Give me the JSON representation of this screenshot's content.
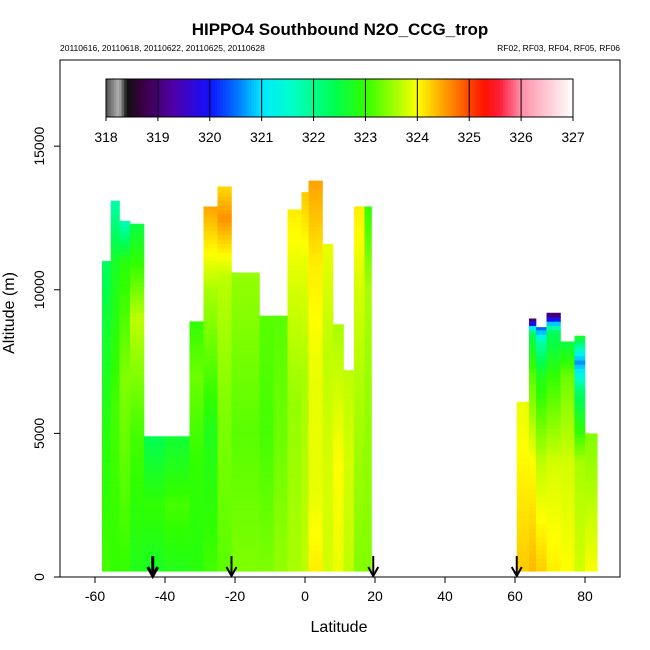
{
  "chart_data": {
    "type": "heatmap",
    "title": "HIPPO4 Southbound N2O_CCG_trop",
    "subtitle_left": "20110616, 20110618, 20110622, 20110625, 20110628",
    "subtitle_right": "RF02, RF03, RF04, RF05, RF06",
    "xlabel": "Latitude",
    "ylabel": "Altitude (m)",
    "xlim": [
      -70,
      90
    ],
    "ylim": [
      0,
      18000
    ],
    "x_ticks": [
      "-60",
      "-40",
      "-20",
      "0",
      "20",
      "40",
      "60",
      "80"
    ],
    "x_tick_values": [
      -60,
      -40,
      -20,
      0,
      20,
      40,
      60,
      80
    ],
    "y_ticks": [
      "0",
      "5000",
      "10000",
      "15000"
    ],
    "y_tick_values": [
      0,
      5000,
      10000,
      15000
    ],
    "colorbar": {
      "min": 318,
      "max": 327,
      "tick_labels": [
        "318",
        "319",
        "320",
        "321",
        "322",
        "323",
        "324",
        "325",
        "326",
        "327"
      ],
      "stops": [
        {
          "v": 318.0,
          "c": "#505050"
        },
        {
          "v": 318.25,
          "c": "#b4b4b4"
        },
        {
          "v": 318.4,
          "c": "#101010"
        },
        {
          "v": 318.7,
          "c": "#3a0040"
        },
        {
          "v": 319.3,
          "c": "#5000a8"
        },
        {
          "v": 320.0,
          "c": "#1010ff"
        },
        {
          "v": 320.5,
          "c": "#0070ff"
        },
        {
          "v": 321.0,
          "c": "#00e8ff"
        },
        {
          "v": 321.6,
          "c": "#00ffc8"
        },
        {
          "v": 322.4,
          "c": "#00ff50"
        },
        {
          "v": 323.0,
          "c": "#30ff00"
        },
        {
          "v": 323.6,
          "c": "#a8ff00"
        },
        {
          "v": 324.0,
          "c": "#ffff00"
        },
        {
          "v": 324.6,
          "c": "#ff9000"
        },
        {
          "v": 325.3,
          "c": "#ff1000"
        },
        {
          "v": 325.6,
          "c": "#ff2040"
        },
        {
          "v": 326.0,
          "c": "#ff90a8"
        },
        {
          "v": 327.0,
          "c": "#ffffff"
        }
      ]
    },
    "profiles": [
      {
        "lat_min": -58,
        "lat_max": -55.5,
        "alt_top": 11000,
        "levels": [
          {
            "alt": 0,
            "v": 323.1
          },
          {
            "alt": 5000,
            "v": 322.9
          },
          {
            "alt": 9000,
            "v": 322.6
          },
          {
            "alt": 11000,
            "v": 322.3
          }
        ]
      },
      {
        "lat_min": -55.5,
        "lat_max": -53,
        "alt_top": 13100,
        "levels": [
          {
            "alt": 0,
            "v": 323.0
          },
          {
            "alt": 6000,
            "v": 323.1
          },
          {
            "alt": 11000,
            "v": 322.7
          },
          {
            "alt": 13100,
            "v": 321.8
          }
        ]
      },
      {
        "lat_min": -53,
        "lat_max": -50,
        "alt_top": 12400,
        "levels": [
          {
            "alt": 0,
            "v": 323.0
          },
          {
            "alt": 7000,
            "v": 323.4
          },
          {
            "alt": 11000,
            "v": 322.9
          },
          {
            "alt": 12400,
            "v": 321.7
          }
        ]
      },
      {
        "lat_min": -50,
        "lat_max": -46,
        "alt_top": 12300,
        "levels": [
          {
            "alt": 0,
            "v": 322.8
          },
          {
            "alt": 5000,
            "v": 323.1
          },
          {
            "alt": 9000,
            "v": 323.7
          },
          {
            "alt": 12300,
            "v": 322.5
          }
        ]
      },
      {
        "lat_min": -46,
        "lat_max": -40,
        "alt_top": 4900,
        "levels": [
          {
            "alt": 0,
            "v": 322.7
          },
          {
            "alt": 2500,
            "v": 323.0
          },
          {
            "alt": 4900,
            "v": 322.4
          }
        ]
      },
      {
        "lat_min": -40,
        "lat_max": -33,
        "alt_top": 4900,
        "levels": [
          {
            "alt": 0,
            "v": 322.8
          },
          {
            "alt": 2500,
            "v": 323.1
          },
          {
            "alt": 4900,
            "v": 322.6
          }
        ]
      },
      {
        "lat_min": -33,
        "lat_max": -29,
        "alt_top": 8900,
        "levels": [
          {
            "alt": 0,
            "v": 322.9
          },
          {
            "alt": 4000,
            "v": 323.0
          },
          {
            "alt": 7000,
            "v": 323.3
          },
          {
            "alt": 8900,
            "v": 323.0
          }
        ]
      },
      {
        "lat_min": -29,
        "lat_max": -25,
        "alt_top": 12900,
        "levels": [
          {
            "alt": 0,
            "v": 323.1
          },
          {
            "alt": 5000,
            "v": 322.8
          },
          {
            "alt": 10000,
            "v": 323.6
          },
          {
            "alt": 12900,
            "v": 324.5
          }
        ]
      },
      {
        "lat_min": -25,
        "lat_max": -21,
        "alt_top": 13600,
        "levels": [
          {
            "alt": 0,
            "v": 323.2
          },
          {
            "alt": 6000,
            "v": 323.4
          },
          {
            "alt": 10500,
            "v": 323.7
          },
          {
            "alt": 12500,
            "v": 324.6
          },
          {
            "alt": 13600,
            "v": 324.2
          }
        ]
      },
      {
        "lat_min": -21,
        "lat_max": -13,
        "alt_top": 10600,
        "levels": [
          {
            "alt": 0,
            "v": 323.4
          },
          {
            "alt": 5000,
            "v": 323.2
          },
          {
            "alt": 10600,
            "v": 323.5
          }
        ]
      },
      {
        "lat_min": -13,
        "lat_max": -9,
        "alt_top": 9100,
        "levels": [
          {
            "alt": 0,
            "v": 323.4
          },
          {
            "alt": 5000,
            "v": 323.1
          },
          {
            "alt": 9100,
            "v": 323.2
          }
        ]
      },
      {
        "lat_min": -9,
        "lat_max": -5,
        "alt_top": 9100,
        "levels": [
          {
            "alt": 0,
            "v": 323.5
          },
          {
            "alt": 5000,
            "v": 323.3
          },
          {
            "alt": 9100,
            "v": 323.2
          }
        ]
      },
      {
        "lat_min": -5,
        "lat_max": -1,
        "alt_top": 12800,
        "levels": [
          {
            "alt": 0,
            "v": 323.6
          },
          {
            "alt": 6000,
            "v": 323.5
          },
          {
            "alt": 10000,
            "v": 323.8
          },
          {
            "alt": 12800,
            "v": 324.1
          }
        ]
      },
      {
        "lat_min": -1,
        "lat_max": 1,
        "alt_top": 13400,
        "levels": [
          {
            "alt": 0,
            "v": 323.7
          },
          {
            "alt": 7000,
            "v": 323.6
          },
          {
            "alt": 11000,
            "v": 323.9
          },
          {
            "alt": 13400,
            "v": 324.3
          }
        ]
      },
      {
        "lat_min": 1,
        "lat_max": 5,
        "alt_top": 13800,
        "levels": [
          {
            "alt": 0,
            "v": 324.1
          },
          {
            "alt": 3000,
            "v": 323.9
          },
          {
            "alt": 7000,
            "v": 323.9
          },
          {
            "alt": 11000,
            "v": 324.1
          },
          {
            "alt": 13800,
            "v": 324.5
          }
        ]
      },
      {
        "lat_min": 5,
        "lat_max": 8,
        "alt_top": 11600,
        "levels": [
          {
            "alt": 0,
            "v": 323.8
          },
          {
            "alt": 4000,
            "v": 323.8
          },
          {
            "alt": 8000,
            "v": 323.7
          },
          {
            "alt": 11600,
            "v": 323.9
          }
        ]
      },
      {
        "lat_min": 8,
        "lat_max": 11,
        "alt_top": 8800,
        "levels": [
          {
            "alt": 0,
            "v": 323.9
          },
          {
            "alt": 4000,
            "v": 324.0
          },
          {
            "alt": 8800,
            "v": 323.6
          }
        ]
      },
      {
        "lat_min": 11,
        "lat_max": 14,
        "alt_top": 7200,
        "levels": [
          {
            "alt": 0,
            "v": 323.7
          },
          {
            "alt": 4000,
            "v": 323.8
          },
          {
            "alt": 7200,
            "v": 323.7
          }
        ]
      },
      {
        "lat_min": 14,
        "lat_max": 17,
        "alt_top": 12900,
        "levels": [
          {
            "alt": 0,
            "v": 323.4
          },
          {
            "alt": 6000,
            "v": 323.6
          },
          {
            "alt": 10000,
            "v": 323.8
          },
          {
            "alt": 12900,
            "v": 324.1
          }
        ]
      },
      {
        "lat_min": 17,
        "lat_max": 19,
        "alt_top": 12900,
        "levels": [
          {
            "alt": 0,
            "v": 323.4
          },
          {
            "alt": 6000,
            "v": 323.5
          },
          {
            "alt": 10000,
            "v": 323.6
          },
          {
            "alt": 12900,
            "v": 323.0
          }
        ]
      },
      {
        "lat_min": 60.5,
        "lat_max": 64,
        "alt_top": 6100,
        "levels": [
          {
            "alt": 0,
            "v": 324.3
          },
          {
            "alt": 3000,
            "v": 324.1
          },
          {
            "alt": 6100,
            "v": 323.9
          }
        ]
      },
      {
        "lat_min": 64,
        "lat_max": 66,
        "alt_top": 9000,
        "levels": [
          {
            "alt": 0,
            "v": 324.4
          },
          {
            "alt": 4000,
            "v": 324.0
          },
          {
            "alt": 7000,
            "v": 323.2
          },
          {
            "alt": 8500,
            "v": 322.4
          },
          {
            "alt": 9000,
            "v": 318.6
          }
        ]
      },
      {
        "lat_min": 66,
        "lat_max": 69,
        "alt_top": 8700,
        "levels": [
          {
            "alt": 0,
            "v": 324.3
          },
          {
            "alt": 4000,
            "v": 323.7
          },
          {
            "alt": 7000,
            "v": 322.8
          },
          {
            "alt": 8200,
            "v": 321.8
          },
          {
            "alt": 8700,
            "v": 320.3
          }
        ]
      },
      {
        "lat_min": 69,
        "lat_max": 73,
        "alt_top": 9200,
        "levels": [
          {
            "alt": 0,
            "v": 324.1
          },
          {
            "alt": 4000,
            "v": 323.8
          },
          {
            "alt": 7000,
            "v": 323.0
          },
          {
            "alt": 8600,
            "v": 322.3
          },
          {
            "alt": 9200,
            "v": 318.5
          }
        ]
      },
      {
        "lat_min": 73,
        "lat_max": 77,
        "alt_top": 8200,
        "levels": [
          {
            "alt": 0,
            "v": 324.0
          },
          {
            "alt": 4000,
            "v": 323.8
          },
          {
            "alt": 7000,
            "v": 323.3
          },
          {
            "alt": 8200,
            "v": 322.5
          }
        ]
      },
      {
        "lat_min": 77,
        "lat_max": 80,
        "alt_top": 8400,
        "levels": [
          {
            "alt": 0,
            "v": 323.8
          },
          {
            "alt": 4000,
            "v": 323.6
          },
          {
            "alt": 6500,
            "v": 322.2
          },
          {
            "alt": 7500,
            "v": 320.6
          },
          {
            "alt": 8400,
            "v": 322.8
          }
        ]
      },
      {
        "lat_min": 80,
        "lat_max": 83.5,
        "alt_top": 5000,
        "levels": [
          {
            "alt": 0,
            "v": 324.0
          },
          {
            "alt": 2500,
            "v": 323.7
          },
          {
            "alt": 5000,
            "v": 323.4
          }
        ]
      }
    ],
    "flight_markers": [
      {
        "lat": -43.5,
        "bold": true
      },
      {
        "lat": -21,
        "bold": false
      },
      {
        "lat": 19.5,
        "bold": false
      },
      {
        "lat": 60.5,
        "bold": false
      }
    ]
  }
}
